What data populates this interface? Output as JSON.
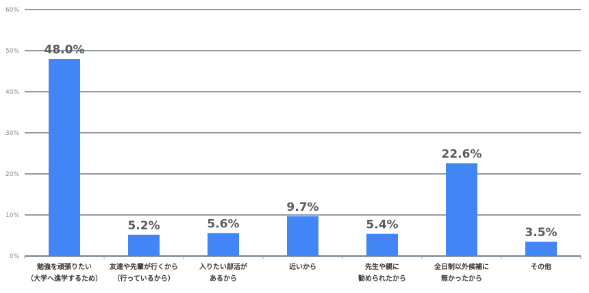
{
  "chart_data": {
    "type": "bar",
    "title": "",
    "xlabel": "",
    "ylabel": "",
    "ylim": [
      0,
      60
    ],
    "yticks": [
      "0%",
      "10%",
      "20%",
      "30%",
      "40%",
      "50%",
      "60%"
    ],
    "grid": true,
    "legend": "none",
    "bar_color": "#4285f4",
    "categories": [
      [
        "勉強を頑張りたい",
        "（大学へ進学するため）"
      ],
      [
        "友達や先輩が行くから",
        "（行っているから）"
      ],
      [
        "入りたい部活が",
        "あるから"
      ],
      [
        "近いから"
      ],
      [
        "先生や親に",
        "勧められたから"
      ],
      [
        "全日制以外候補に",
        "無かったから"
      ],
      [
        "その他"
      ]
    ],
    "values": [
      48.0,
      5.2,
      5.6,
      9.7,
      5.4,
      22.6,
      3.5
    ],
    "value_labels": [
      "48.0%",
      "5.2%",
      "5.6%",
      "9.7%",
      "5.4%",
      "22.6%",
      "3.5%"
    ]
  }
}
